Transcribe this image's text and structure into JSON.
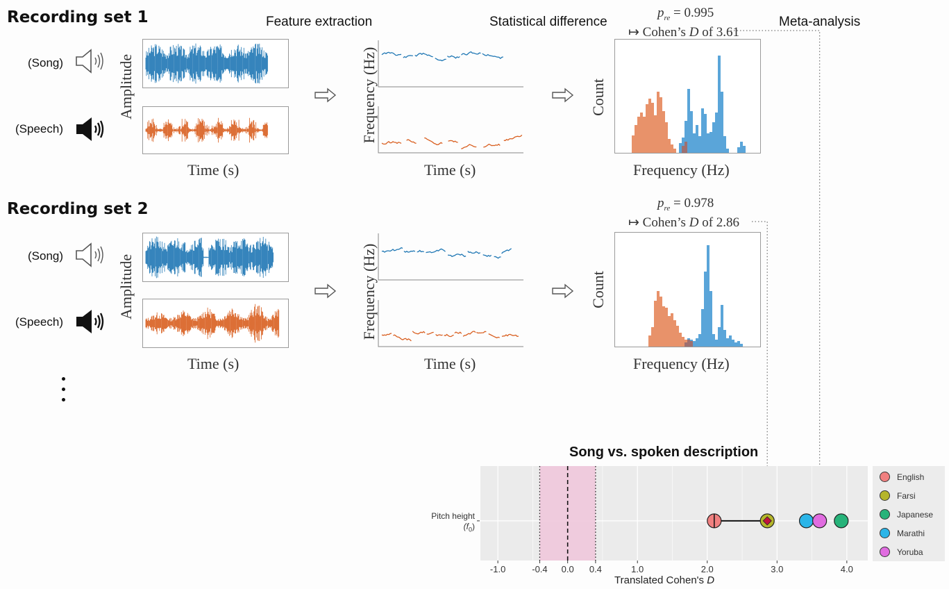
{
  "stages": {
    "feature_extraction": "Feature extraction",
    "statistical_difference": "Statistical difference",
    "meta_analysis": "Meta-analysis"
  },
  "sets": [
    {
      "title": "Recording set 1",
      "song_label": "(Song)",
      "speech_label": "(Speech)",
      "amplitude_label": "Amplitude",
      "time_label": "Time (s)",
      "frequency_label": "Frequency (Hz)",
      "count_label": "Count",
      "p_sym": "p",
      "p_sub": "re",
      "p_value": "= 0.995",
      "cohens_prefix": "↦ Cohen’s",
      "cohens_d": "D",
      "cohens_suffix": "of 3.61"
    },
    {
      "title": "Recording set 2",
      "song_label": "(Song)",
      "speech_label": "(Speech)",
      "amplitude_label": "Amplitude",
      "time_label": "Time (s)",
      "frequency_label": "Frequency (Hz)",
      "count_label": "Count",
      "p_sym": "p",
      "p_sub": "re",
      "p_value": "= 0.978",
      "cohens_prefix": "↦ Cohen’s",
      "cohens_d": "D",
      "cohens_suffix": "of 2.86"
    }
  ],
  "colors": {
    "song": "#1f77b4",
    "speech": "#d95f20",
    "hist_song": "#5aa5d9",
    "hist_speech": "#e8926a",
    "hist_overlap": "#9e7070",
    "band": "#efc8dc"
  },
  "chart_data": {
    "type": "scatter",
    "title": "Song vs. spoken description",
    "xlabel": "Translated Cohen's",
    "xlabel_italic": "D",
    "ylabel": "Pitch height",
    "ylabel_sub": "(f",
    "ylabel_sub_idx": "0",
    "ylabel_sub_end": ")",
    "xlim": [
      -1.25,
      4.3
    ],
    "x_ticks": [
      "-1.0",
      "-0.4",
      "0.0",
      "0.4",
      "1.0",
      "2.0",
      "3.0",
      "4.0"
    ],
    "x_tick_values": [
      -1.0,
      -0.4,
      0.0,
      0.4,
      1.0,
      2.0,
      3.0,
      4.0
    ],
    "null_band": [
      -0.4,
      0.4
    ],
    "reference_line": 0.0,
    "grid": true,
    "legend_placement": "right",
    "series": [
      {
        "name": "English",
        "x": 2.1,
        "color": "#f08080"
      },
      {
        "name": "Farsi",
        "x": 2.86,
        "color": "#b5b52a"
      },
      {
        "name": "Japanese",
        "x": 3.92,
        "color": "#27b37a"
      },
      {
        "name": "Marathi",
        "x": 3.42,
        "color": "#2bb5e8"
      },
      {
        "name": "Yoruba",
        "x": 3.61,
        "color": "#e06ce0"
      }
    ],
    "interval": [
      2.1,
      2.86
    ],
    "estimate": 2.86,
    "estimate_color": "#c0143c",
    "arrow_targets": [
      3.61,
      2.86
    ]
  }
}
